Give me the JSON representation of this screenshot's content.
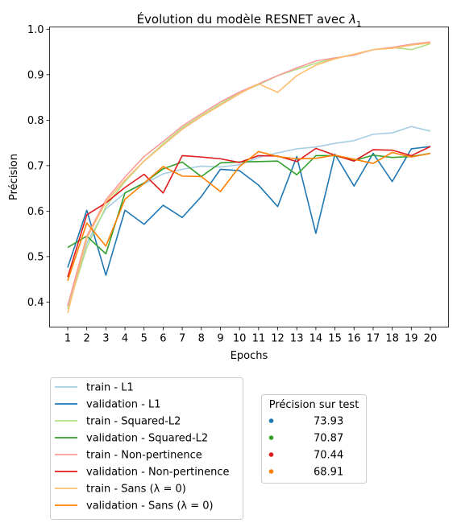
{
  "chart_data": {
    "type": "line",
    "title_main": "Évolution du modèle RESNET avec ",
    "title_sym": "λ",
    "title_sub": "1",
    "xlabel": "Epochs",
    "ylabel": "Précision",
    "x": [
      1,
      2,
      3,
      4,
      5,
      6,
      7,
      8,
      9,
      10,
      11,
      12,
      13,
      14,
      15,
      16,
      17,
      18,
      19,
      20
    ],
    "xlim": [
      0.05,
      20.95
    ],
    "ylim": [
      0.345,
      1.005
    ],
    "yticks": [
      0.4,
      0.5,
      0.6,
      0.7,
      0.8,
      0.9,
      1.0
    ],
    "ytick_labels": [
      "0.4",
      "0.5",
      "0.6",
      "0.7",
      "0.8",
      "0.9",
      "1.0"
    ],
    "grid": false,
    "legend_position": "lower-left, below axes",
    "series": [
      {
        "name": "train - L1",
        "color": "#a6cee3",
        "values": [
          0.39,
          0.53,
          0.605,
          0.64,
          0.66,
          0.682,
          0.692,
          0.699,
          0.697,
          0.702,
          0.718,
          0.728,
          0.737,
          0.741,
          0.749,
          0.755,
          0.769,
          0.772,
          0.786,
          0.776
        ]
      },
      {
        "name": "validation - L1",
        "color": "#1f78b4",
        "values": [
          0.476,
          0.602,
          0.459,
          0.602,
          0.571,
          0.613,
          0.586,
          0.632,
          0.692,
          0.689,
          0.657,
          0.61,
          0.72,
          0.551,
          0.725,
          0.655,
          0.727,
          0.665,
          0.737,
          0.742
        ]
      },
      {
        "name": "train - Squared-L2",
        "color": "#b2df8a",
        "values": [
          0.385,
          0.52,
          0.61,
          0.665,
          0.71,
          0.748,
          0.783,
          0.81,
          0.836,
          0.86,
          0.878,
          0.898,
          0.912,
          0.925,
          0.936,
          0.945,
          0.955,
          0.96,
          0.955,
          0.968
        ]
      },
      {
        "name": "validation - Squared-L2",
        "color": "#33a02c",
        "values": [
          0.52,
          0.545,
          0.506,
          0.64,
          0.662,
          0.693,
          0.708,
          0.676,
          0.706,
          0.708,
          0.709,
          0.71,
          0.68,
          0.722,
          0.722,
          0.711,
          0.723,
          0.718,
          0.72,
          0.727
        ]
      },
      {
        "name": "train - Non-pertinence",
        "color": "#fb9a99",
        "values": [
          0.392,
          0.545,
          0.625,
          0.675,
          0.72,
          0.753,
          0.787,
          0.814,
          0.84,
          0.862,
          0.88,
          0.898,
          0.915,
          0.93,
          0.937,
          0.943,
          0.955,
          0.96,
          0.967,
          0.972
        ]
      },
      {
        "name": "validation - Non-pertinence",
        "color": "#e31a1c",
        "values": [
          0.455,
          0.592,
          0.618,
          0.652,
          0.681,
          0.64,
          0.722,
          0.719,
          0.715,
          0.707,
          0.722,
          0.721,
          0.709,
          0.738,
          0.723,
          0.71,
          0.735,
          0.734,
          0.722,
          0.742
        ]
      },
      {
        "name": "train - Sans (λ = 0)",
        "color": "#fdbf6f",
        "values": [
          0.376,
          0.54,
          0.62,
          0.668,
          0.71,
          0.745,
          0.78,
          0.808,
          0.833,
          0.858,
          0.88,
          0.861,
          0.898,
          0.921,
          0.935,
          0.945,
          0.955,
          0.958,
          0.965,
          0.97
        ]
      },
      {
        "name": "validation - Sans (λ = 0)",
        "color": "#ff7f00",
        "values": [
          0.447,
          0.574,
          0.523,
          0.626,
          0.661,
          0.698,
          0.677,
          0.676,
          0.643,
          0.698,
          0.731,
          0.72,
          0.715,
          0.716,
          0.723,
          0.714,
          0.705,
          0.729,
          0.719,
          0.727
        ]
      }
    ],
    "test_legend": {
      "title": "Précision sur test",
      "entries": [
        {
          "label": "73.93",
          "color": "#1f78b4"
        },
        {
          "label": "70.87",
          "color": "#33a02c"
        },
        {
          "label": "70.44",
          "color": "#e31a1c"
        },
        {
          "label": "68.91",
          "color": "#ff7f00"
        }
      ]
    }
  }
}
